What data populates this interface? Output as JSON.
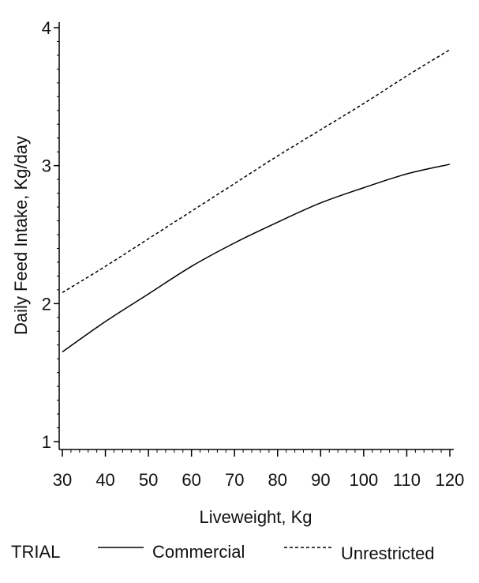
{
  "chart_data": {
    "type": "line",
    "title": "",
    "xlabel": "Liveweight,  Kg",
    "ylabel": "Daily Feed Intake, Kg/day",
    "xlim": [
      30,
      120
    ],
    "ylim": [
      1,
      4
    ],
    "x_ticks": [
      30,
      40,
      50,
      60,
      70,
      80,
      90,
      100,
      110,
      120
    ],
    "y_ticks": [
      1,
      2,
      3,
      4
    ],
    "grid": false,
    "legend": {
      "title": "TRIAL",
      "placement": "bottom"
    },
    "x": [
      30,
      40,
      50,
      60,
      70,
      80,
      90,
      100,
      110,
      120
    ],
    "series": [
      {
        "name": "Commercial",
        "style": "solid",
        "color": "#000000",
        "values": [
          1.65,
          1.87,
          2.07,
          2.27,
          2.44,
          2.59,
          2.73,
          2.84,
          2.94,
          3.01
        ]
      },
      {
        "name": "Unrestricted",
        "style": "dashed",
        "color": "#000000",
        "values": [
          2.08,
          2.27,
          2.47,
          2.67,
          2.87,
          3.07,
          3.26,
          3.45,
          3.65,
          3.84
        ]
      }
    ]
  }
}
